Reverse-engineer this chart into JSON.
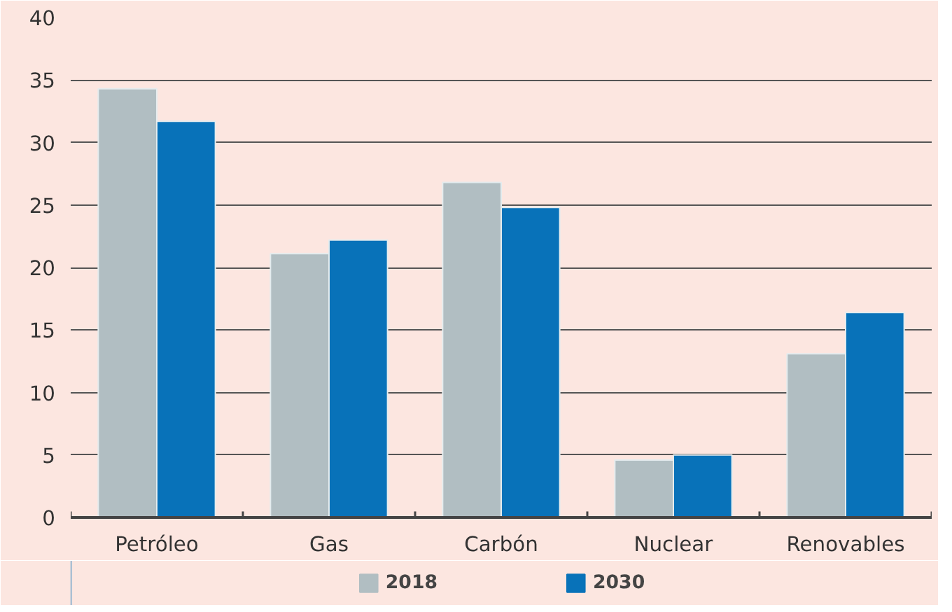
{
  "chart_data": {
    "type": "bar",
    "categories": [
      "Petróleo",
      "Gas",
      "Carbón",
      "Nuclear",
      "Renovables"
    ],
    "series": [
      {
        "name": "2018",
        "color": "#b1bec2",
        "values": [
          34.3,
          21.1,
          26.8,
          4.6,
          13.1
        ]
      },
      {
        "name": "2030",
        "color": "#0872b9",
        "values": [
          31.7,
          22.2,
          24.8,
          5.0,
          16.4
        ]
      }
    ],
    "ylim": [
      0,
      40
    ],
    "yticks": [
      0,
      5,
      10,
      15,
      20,
      25,
      30,
      35,
      40
    ],
    "grid": "y",
    "legend": "bottom"
  }
}
